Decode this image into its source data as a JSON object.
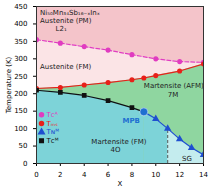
{
  "chart_data": {
    "type": "line",
    "x_label": "X",
    "y_label": "Temperature (K)",
    "xlim": [
      0,
      14
    ],
    "xticks": [
      0,
      2,
      4,
      6,
      8,
      10,
      12,
      14
    ],
    "ylim": [
      0,
      450
    ],
    "yticks": [
      0,
      50,
      100,
      150,
      200,
      250,
      300,
      350,
      400,
      450
    ],
    "legend": "lower left",
    "color": "#f4c4ca",
    "series": [
      {
        "name": "Tᴄᴬ",
        "color": "#e03cc0",
        "marker": "circle",
        "line_style": "dashed",
        "x": [
          0,
          2,
          4,
          6,
          8,
          10,
          12,
          14
        ],
        "values": [
          355,
          345,
          335,
          325,
          312,
          300,
          292,
          290
        ]
      },
      {
        "name": "Tₘₛ",
        "color": "#e8201a",
        "marker": "circle",
        "line_style": "solid",
        "x": [
          0,
          2,
          4,
          6,
          8,
          9,
          10,
          12,
          14
        ],
        "values": [
          215,
          218,
          225,
          232,
          240,
          245,
          252,
          265,
          285
        ]
      },
      {
        "name": "Tɴᴹ",
        "color": "#1f4fd0",
        "marker": "triangle",
        "line_style": "solid",
        "x": [
          9,
          10,
          11,
          12,
          13,
          14
        ],
        "values": [
          148,
          128,
          100,
          70,
          45,
          25
        ]
      },
      {
        "name": "Tᴄᴹ",
        "color": "#111111",
        "marker": "square",
        "line_style": "solid",
        "x": [
          0,
          2,
          4,
          6,
          8,
          9
        ],
        "values": [
          210,
          204,
          195,
          180,
          160,
          148
        ]
      }
    ],
    "regions": [
      {
        "label": "Austenite (FM)",
        "color": "#fbe4e6",
        "bounded_by": [
          "Tᴄᴬ"
        ]
      },
      {
        "label": "Martensite (AFM)",
        "color": "#8fd6a0",
        "bounded_by": [
          "Tₘₛ"
        ]
      },
      {
        "label": "Martensite (FM)",
        "color": "#7dd3d8",
        "bounded_by": [
          "Tᴄᴹ",
          "Tɴᴹ"
        ]
      },
      {
        "label": "SG",
        "color": "#c4ecee",
        "bounded_by": [
          "Tɴᴹ"
        ],
        "boundary_x": 11,
        "boundary_top": 100
      }
    ],
    "mpb": {
      "label": "MPB",
      "x": 9,
      "y": 148,
      "color": "#1f6fd1"
    },
    "annotations": [
      {
        "text": "Ni₅₀Mn₃₄Sb₁₆₋ₓInₓ",
        "x": 0.3,
        "y": 432,
        "color": "#222222"
      },
      {
        "text": "Austenite (PM)",
        "x": 0.3,
        "y": 408,
        "color": "#222222"
      },
      {
        "text": "L2₁",
        "x": 1.6,
        "y": 386,
        "color": "#222222"
      },
      {
        "text": "Austenite (FM)",
        "x": 0.3,
        "y": 278,
        "color": "#222222"
      },
      {
        "text": "Martensite (AFM)",
        "x": 9.0,
        "y": 222,
        "color": "#222222"
      },
      {
        "text": "7M",
        "x": 11.0,
        "y": 198,
        "color": "#222222"
      },
      {
        "text": "Martensite (FM)",
        "x": 4.6,
        "y": 62,
        "color": "#222222"
      },
      {
        "text": "4O",
        "x": 6.2,
        "y": 38,
        "color": "#222222"
      },
      {
        "text": "SG",
        "x": 12.2,
        "y": 14,
        "color": "#222222"
      }
    ]
  }
}
